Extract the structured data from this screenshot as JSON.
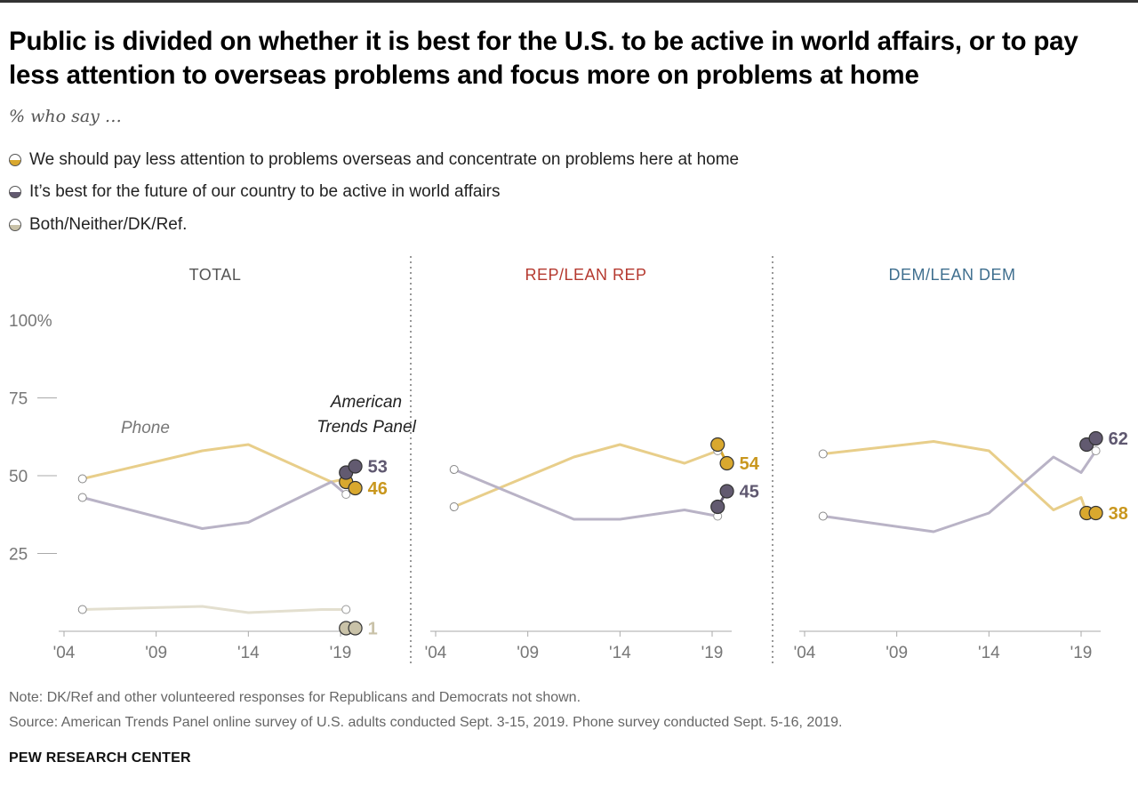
{
  "title": "Public is divided on whether it is best for the U.S. to be active in world affairs, or to pay less attention to overseas problems and focus more on problems at home",
  "subtitle": "% who say …",
  "legend": [
    {
      "label": "We should pay less attention to problems overseas and concentrate on problems here at home",
      "color": "#d9a82e"
    },
    {
      "label": "It’s best for the future of our country to be active in world affairs",
      "color": "#625a70"
    },
    {
      "label": "Both/Neither/DK/Ref.",
      "color": "#c9c2a8"
    }
  ],
  "annotations": {
    "phone": "Phone",
    "atp": "American Trends Panel"
  },
  "notes": {
    "note": "Note: DK/Ref and other volunteered responses for Republicans and Democrats not shown.",
    "source": "Source: American Trends Panel online survey of U.S. adults conducted Sept. 3-15, 2019. Phone survey conducted Sept. 5-16, 2019.",
    "org": "PEW RESEARCH CENTER"
  },
  "colors": {
    "home_phone": "#e8ce8a",
    "home_atp": "#d9a82e",
    "active_phone": "#b9b3c6",
    "active_atp": "#625a70",
    "both_phone": "#e3dfcf",
    "both_atp": "#c9c2a8",
    "total_title": "#555555",
    "rep_title": "#b5392f",
    "dem_title": "#3f6f8f"
  },
  "chart_data": [
    {
      "type": "line",
      "panel": "TOTAL",
      "ylim": [
        0,
        100
      ],
      "yticks": [
        25,
        50,
        75,
        100
      ],
      "ytick_labels": [
        "25",
        "50",
        "75",
        "100%"
      ],
      "xticks": [
        2004,
        2009,
        2014,
        2019
      ],
      "xtick_labels": [
        "'04",
        "'09",
        "'14",
        "'19"
      ],
      "series": [
        {
          "name": "We should pay less attention to problems overseas and concentrate on problems here at home",
          "phone": [
            [
              2005.0,
              49
            ],
            [
              2011.5,
              58
            ],
            [
              2014.0,
              60
            ],
            [
              2018.5,
              48
            ],
            [
              2019.3,
              49
            ]
          ],
          "atp": [
            [
              2019.3,
              48
            ],
            [
              2019.8,
              46
            ]
          ],
          "end_label": "46"
        },
        {
          "name": "It’s best for the future of our country to be active in world affairs",
          "phone": [
            [
              2005.0,
              43
            ],
            [
              2011.5,
              33
            ],
            [
              2014.0,
              35
            ],
            [
              2018.5,
              48
            ],
            [
              2019.3,
              44
            ]
          ],
          "atp": [
            [
              2019.3,
              51
            ],
            [
              2019.8,
              53
            ]
          ],
          "end_label": "53"
        },
        {
          "name": "Both/Neither/DK/Ref.",
          "phone": [
            [
              2005.0,
              7
            ],
            [
              2011.5,
              8
            ],
            [
              2014.0,
              6
            ],
            [
              2018.0,
              7
            ],
            [
              2019.3,
              7
            ]
          ],
          "atp": [
            [
              2019.3,
              1
            ],
            [
              2019.8,
              1
            ]
          ],
          "end_label": "1"
        }
      ]
    },
    {
      "type": "line",
      "panel": "REP/LEAN REP",
      "ylim": [
        0,
        100
      ],
      "xticks": [
        2004,
        2009,
        2014,
        2019
      ],
      "xtick_labels": [
        "'04",
        "'09",
        "'14",
        "'19"
      ],
      "series": [
        {
          "name": "We should pay less attention to problems overseas and concentrate on problems here at home",
          "phone": [
            [
              2005.0,
              40
            ],
            [
              2011.5,
              56
            ],
            [
              2014.0,
              60
            ],
            [
              2017.5,
              54
            ],
            [
              2019.3,
              58
            ]
          ],
          "atp": [
            [
              2019.3,
              60
            ],
            [
              2019.8,
              54
            ]
          ],
          "end_label": "54"
        },
        {
          "name": "It’s best for the future of our country to be active in world affairs",
          "phone": [
            [
              2005.0,
              52
            ],
            [
              2011.5,
              36
            ],
            [
              2014.0,
              36
            ],
            [
              2017.5,
              39
            ],
            [
              2019.3,
              37
            ]
          ],
          "atp": [
            [
              2019.3,
              40
            ],
            [
              2019.8,
              45
            ]
          ],
          "end_label": "45"
        }
      ]
    },
    {
      "type": "line",
      "panel": "DEM/LEAN DEM",
      "ylim": [
        0,
        100
      ],
      "xticks": [
        2004,
        2009,
        2014,
        2019
      ],
      "xtick_labels": [
        "'04",
        "'09",
        "'14",
        "'19"
      ],
      "series": [
        {
          "name": "We should pay less attention to problems overseas and concentrate on problems here at home",
          "phone": [
            [
              2005.0,
              57
            ],
            [
              2011.0,
              61
            ],
            [
              2014.0,
              58
            ],
            [
              2017.5,
              39
            ],
            [
              2019.0,
              43
            ],
            [
              2019.3,
              38
            ]
          ],
          "atp": [
            [
              2019.3,
              38
            ],
            [
              2019.8,
              38
            ]
          ],
          "end_label": "38"
        },
        {
          "name": "It’s best for the future of our country to be active in world affairs",
          "phone": [
            [
              2005.0,
              37
            ],
            [
              2011.0,
              32
            ],
            [
              2014.0,
              38
            ],
            [
              2017.5,
              56
            ],
            [
              2019.0,
              51
            ],
            [
              2019.8,
              58
            ]
          ],
          "atp": [
            [
              2019.3,
              60
            ],
            [
              2019.8,
              62
            ]
          ],
          "end_label": "62"
        }
      ]
    }
  ]
}
